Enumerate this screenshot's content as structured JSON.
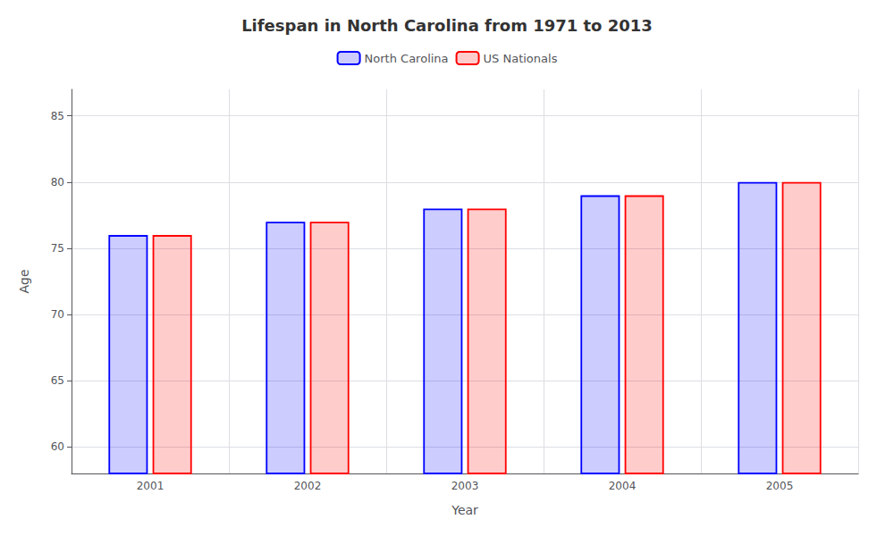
{
  "chart_data": {
    "type": "bar",
    "title": "Lifespan in North Carolina from 1971 to 2013",
    "xlabel": "Year",
    "ylabel": "Age",
    "categories": [
      "2001",
      "2002",
      "2003",
      "2004",
      "2005"
    ],
    "series": [
      {
        "name": "North Carolina",
        "color": "#0000ff",
        "values": [
          76,
          77,
          78,
          79,
          80
        ]
      },
      {
        "name": "US Nationals",
        "color": "#ff0000",
        "values": [
          76,
          77,
          78,
          79,
          80
        ]
      }
    ],
    "ylim": [
      58,
      87
    ],
    "yticks": [
      60,
      65,
      70,
      75,
      80,
      85
    ],
    "grid": true,
    "legend": "top"
  }
}
